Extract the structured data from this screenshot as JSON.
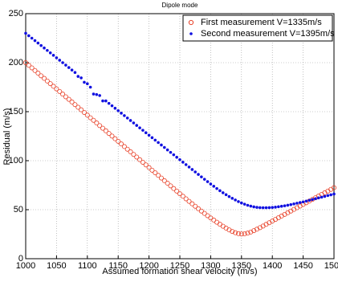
{
  "chart_data": {
    "type": "scatter",
    "title": "Dipole mode",
    "x_label": "Assumed formation shear velocity (m/s)",
    "y_label": "Residual (m/s)",
    "xlim": [
      1000,
      1500
    ],
    "ylim": [
      0,
      250
    ],
    "xticks": [
      1000,
      1050,
      1100,
      1150,
      1200,
      1250,
      1300,
      1350,
      1400,
      1450,
      1500
    ],
    "yticks": [
      0,
      50,
      100,
      150,
      200,
      250
    ],
    "grid": true,
    "legend": "upper right",
    "x": [
      1000,
      1005,
      1010,
      1015,
      1020,
      1025,
      1030,
      1035,
      1040,
      1045,
      1050,
      1055,
      1060,
      1065,
      1070,
      1075,
      1080,
      1085,
      1090,
      1095,
      1100,
      1105,
      1110,
      1115,
      1120,
      1125,
      1130,
      1135,
      1140,
      1145,
      1150,
      1155,
      1160,
      1165,
      1170,
      1175,
      1180,
      1185,
      1190,
      1195,
      1200,
      1205,
      1210,
      1215,
      1220,
      1225,
      1230,
      1235,
      1240,
      1245,
      1250,
      1255,
      1260,
      1265,
      1270,
      1275,
      1280,
      1285,
      1290,
      1295,
      1300,
      1305,
      1310,
      1315,
      1320,
      1325,
      1330,
      1335,
      1340,
      1345,
      1350,
      1355,
      1360,
      1365,
      1370,
      1375,
      1380,
      1385,
      1390,
      1395,
      1400,
      1405,
      1410,
      1415,
      1420,
      1425,
      1430,
      1435,
      1440,
      1445,
      1450,
      1455,
      1460,
      1465,
      1470,
      1475,
      1480,
      1485,
      1490,
      1495,
      1500
    ],
    "series": [
      {
        "name": "First measurement V=1335m/s",
        "color": "#e8432b",
        "marker": "circle",
        "values": [
          200,
          197.3,
          194.7,
          192,
          189.3,
          186.6,
          184,
          181.3,
          178.6,
          175.9,
          173.3,
          170.6,
          167.9,
          165.2,
          162.6,
          159.9,
          157.2,
          154.5,
          151.9,
          149.2,
          146.5,
          143.8,
          141.2,
          138.5,
          135.8,
          133.1,
          130.5,
          127.8,
          125.1,
          122.4,
          119.8,
          117.1,
          114.4,
          111.7,
          109.1,
          106.4,
          103.7,
          101,
          98.4,
          95.7,
          93,
          90.3,
          87.7,
          85,
          82.3,
          79.6,
          77,
          74.3,
          71.6,
          69,
          66.3,
          63.7,
          61.1,
          58.5,
          56,
          53.5,
          51,
          48.6,
          46.2,
          43.9,
          41.6,
          39.4,
          37.2,
          35.1,
          33.1,
          31.2,
          29.4,
          27.8,
          26.5,
          25.6,
          25.2,
          25.4,
          26.1,
          27.2,
          28.6,
          30.1,
          31.7,
          33.3,
          35,
          36.7,
          38.4,
          40.1,
          41.8,
          43.5,
          45.2,
          46.9,
          48.6,
          50.3,
          52,
          53.7,
          55.4,
          57.1,
          58.8,
          60.5,
          62.2,
          63.9,
          65.6,
          67.3,
          69,
          70.7,
          72.4
        ]
      },
      {
        "name": "Second measurement V=1395m/s",
        "color": "#1010e0",
        "marker": "dot",
        "values": [
          230,
          227.5,
          225,
          222.5,
          220,
          217.5,
          215,
          212.5,
          210,
          207.5,
          205,
          202.5,
          200,
          197.5,
          195,
          192.5,
          190,
          186,
          184.5,
          180,
          178.5,
          175,
          168,
          167.5,
          166.5,
          161,
          161,
          158.5,
          156,
          153.5,
          151,
          148.5,
          146,
          143.5,
          141,
          138.5,
          136,
          133.5,
          131,
          128.5,
          126,
          123.5,
          121,
          118.5,
          116,
          113.5,
          111,
          108.5,
          106,
          103.5,
          101,
          98.5,
          96,
          93.5,
          91,
          88.5,
          86,
          83.5,
          81,
          78.6,
          76.2,
          73.9,
          71.6,
          69.4,
          67.3,
          65.3,
          63.4,
          61.6,
          59.9,
          58.3,
          56.9,
          55.6,
          54.5,
          53.6,
          52.9,
          52.4,
          52.1,
          52,
          52,
          52.1,
          52.3,
          52.6,
          53,
          53.5,
          54,
          54.6,
          55.2,
          55.9,
          56.6,
          57.3,
          58,
          58.8,
          59.6,
          60.4,
          61.2,
          62,
          62.8,
          63.6,
          64.4,
          65.2,
          66
        ]
      }
    ]
  }
}
